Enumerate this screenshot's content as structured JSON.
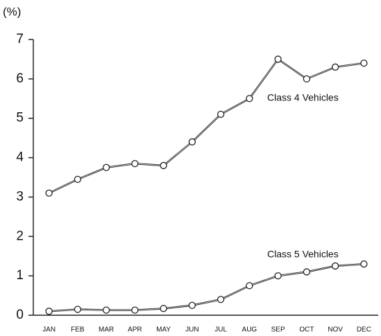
{
  "chart_data": {
    "type": "line",
    "y_label": "(%)",
    "categories": [
      "JAN",
      "FEB",
      "MAR",
      "APR",
      "MAY",
      "JUN",
      "JUL",
      "AUG",
      "SEP",
      "OCT",
      "NOV",
      "DEC"
    ],
    "series": [
      {
        "name": "Class 4 Vehicles",
        "color": "#222222",
        "values": [
          3.1,
          3.45,
          3.75,
          3.85,
          3.8,
          4.4,
          5.1,
          5.5,
          6.5,
          6.0,
          6.3,
          6.4
        ]
      },
      {
        "name": "Class 5 Vehicles",
        "color": "#222222",
        "values": [
          0.1,
          0.15,
          0.13,
          0.13,
          0.17,
          0.25,
          0.4,
          0.75,
          1.0,
          1.1,
          1.25,
          1.3
        ]
      }
    ],
    "ylim": [
      0,
      7
    ],
    "yticks": [
      0,
      1,
      2,
      3,
      4,
      5,
      6,
      7
    ],
    "grid": false
  }
}
